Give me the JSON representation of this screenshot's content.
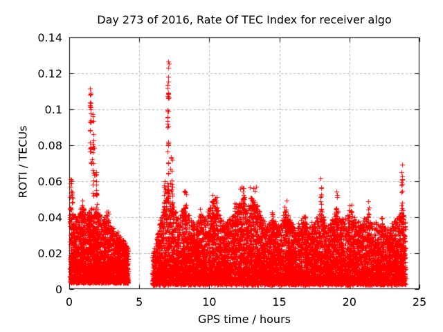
{
  "chart_data": {
    "type": "scatter",
    "title": "Day 273 of 2016, Rate Of TEC Index for receiver algo",
    "xlabel": "GPS time / hours",
    "ylabel": "ROTI / TECUs",
    "xlim": [
      0,
      25
    ],
    "ylim": [
      0,
      0.14
    ],
    "xticks": [
      {
        "v": 0,
        "label": "0"
      },
      {
        "v": 5,
        "label": "5"
      },
      {
        "v": 10,
        "label": "10"
      },
      {
        "v": 15,
        "label": "15"
      },
      {
        "v": 20,
        "label": "20"
      },
      {
        "v": 25,
        "label": "25"
      }
    ],
    "yticks": [
      {
        "v": 0,
        "label": "0"
      },
      {
        "v": 0.02,
        "label": "0.02"
      },
      {
        "v": 0.04,
        "label": "0.04"
      },
      {
        "v": 0.06,
        "label": "0.06"
      },
      {
        "v": 0.08,
        "label": "0.08"
      },
      {
        "v": 0.1,
        "label": "0.1"
      },
      {
        "v": 0.12,
        "label": "0.12"
      },
      {
        "v": 0.14,
        "label": "0.14"
      }
    ],
    "grid": true,
    "legend": "none",
    "marker": "plus",
    "marker_size_px": 7,
    "marker_color": "#ff0000",
    "grid_color": "#b4b4b4",
    "frame_color": "#000000",
    "background": "#ffffff",
    "data_gap_hours": [
      4.2,
      5.95
    ],
    "seed": 20160273,
    "gen": {
      "skew": 1.9,
      "column_step": 0.055,
      "column_prob": 0.35,
      "jitter": 0.0015
    },
    "band_segments": [
      {
        "t0": 0.05,
        "t1": 4.2,
        "n": 2700,
        "floor": 0.004
      },
      {
        "t0": 5.95,
        "t1": 24.0,
        "n": 9800,
        "floor": 0.003
      }
    ],
    "envelope": [
      [
        0.0,
        0.05
      ],
      [
        0.3,
        0.042
      ],
      [
        0.6,
        0.04
      ],
      [
        0.9,
        0.048
      ],
      [
        1.2,
        0.042
      ],
      [
        1.5,
        0.045
      ],
      [
        2.0,
        0.045
      ],
      [
        2.4,
        0.038
      ],
      [
        2.7,
        0.042
      ],
      [
        3.0,
        0.035
      ],
      [
        3.4,
        0.032
      ],
      [
        3.8,
        0.028
      ],
      [
        4.2,
        0.022
      ],
      [
        5.95,
        0.018
      ],
      [
        6.2,
        0.028
      ],
      [
        6.6,
        0.042
      ],
      [
        7.0,
        0.055
      ],
      [
        7.4,
        0.048
      ],
      [
        7.8,
        0.038
      ],
      [
        8.2,
        0.048
      ],
      [
        8.6,
        0.04
      ],
      [
        9.0,
        0.036
      ],
      [
        9.4,
        0.042
      ],
      [
        9.8,
        0.04
      ],
      [
        10.1,
        0.048
      ],
      [
        10.4,
        0.05
      ],
      [
        10.7,
        0.042
      ],
      [
        11.1,
        0.036
      ],
      [
        11.5,
        0.04
      ],
      [
        11.9,
        0.044
      ],
      [
        12.3,
        0.05
      ],
      [
        12.7,
        0.044
      ],
      [
        13.0,
        0.052
      ],
      [
        13.4,
        0.048
      ],
      [
        13.8,
        0.038
      ],
      [
        14.2,
        0.036
      ],
      [
        14.6,
        0.04
      ],
      [
        15.0,
        0.034
      ],
      [
        15.4,
        0.046
      ],
      [
        15.8,
        0.038
      ],
      [
        16.2,
        0.034
      ],
      [
        16.6,
        0.04
      ],
      [
        17.0,
        0.036
      ],
      [
        17.4,
        0.038
      ],
      [
        17.8,
        0.042
      ],
      [
        18.0,
        0.046
      ],
      [
        18.4,
        0.034
      ],
      [
        18.8,
        0.04
      ],
      [
        19.1,
        0.046
      ],
      [
        19.5,
        0.038
      ],
      [
        20.0,
        0.044
      ],
      [
        20.4,
        0.04
      ],
      [
        20.8,
        0.036
      ],
      [
        21.2,
        0.042
      ],
      [
        21.6,
        0.036
      ],
      [
        22.0,
        0.038
      ],
      [
        22.4,
        0.036
      ],
      [
        22.8,
        0.034
      ],
      [
        23.2,
        0.038
      ],
      [
        23.6,
        0.042
      ],
      [
        23.8,
        0.046
      ],
      [
        24.0,
        0.038
      ]
    ],
    "spike_clusters": [
      {
        "t": 0.15,
        "hw": 0.15,
        "y0": 0.035,
        "y1": 0.062,
        "n": 22
      },
      {
        "t": 0.95,
        "hw": 0.1,
        "y0": 0.035,
        "y1": 0.053,
        "n": 12
      },
      {
        "t": 1.52,
        "hw": 0.07,
        "y0": 0.068,
        "y1": 0.1135,
        "n": 26
      },
      {
        "t": 1.7,
        "hw": 0.1,
        "y0": 0.05,
        "y1": 0.1,
        "n": 22
      },
      {
        "t": 1.95,
        "hw": 0.1,
        "y0": 0.038,
        "y1": 0.066,
        "n": 14
      },
      {
        "t": 2.7,
        "hw": 0.12,
        "y0": 0.032,
        "y1": 0.044,
        "n": 10
      },
      {
        "t": 6.8,
        "hw": 0.08,
        "y0": 0.035,
        "y1": 0.06,
        "n": 12
      },
      {
        "t": 7.05,
        "hw": 0.06,
        "y0": 0.05,
        "y1": 0.129,
        "n": 42
      },
      {
        "t": 7.3,
        "hw": 0.1,
        "y0": 0.04,
        "y1": 0.075,
        "n": 16
      },
      {
        "t": 8.3,
        "hw": 0.15,
        "y0": 0.033,
        "y1": 0.055,
        "n": 16
      },
      {
        "t": 9.4,
        "hw": 0.1,
        "y0": 0.03,
        "y1": 0.047,
        "n": 10
      },
      {
        "t": 10.3,
        "hw": 0.3,
        "y0": 0.03,
        "y1": 0.053,
        "n": 30
      },
      {
        "t": 11.9,
        "hw": 0.15,
        "y0": 0.03,
        "y1": 0.048,
        "n": 14
      },
      {
        "t": 12.4,
        "hw": 0.22,
        "y0": 0.03,
        "y1": 0.057,
        "n": 26
      },
      {
        "t": 13.1,
        "hw": 0.28,
        "y0": 0.03,
        "y1": 0.057,
        "n": 26
      },
      {
        "t": 14.5,
        "hw": 0.15,
        "y0": 0.028,
        "y1": 0.044,
        "n": 12
      },
      {
        "t": 15.45,
        "hw": 0.08,
        "y0": 0.03,
        "y1": 0.052,
        "n": 13
      },
      {
        "t": 16.8,
        "hw": 0.12,
        "y0": 0.028,
        "y1": 0.043,
        "n": 10
      },
      {
        "t": 17.95,
        "hw": 0.08,
        "y0": 0.034,
        "y1": 0.063,
        "n": 16
      },
      {
        "t": 19.1,
        "hw": 0.08,
        "y0": 0.03,
        "y1": 0.055,
        "n": 13
      },
      {
        "t": 20.1,
        "hw": 0.25,
        "y0": 0.028,
        "y1": 0.048,
        "n": 18
      },
      {
        "t": 21.35,
        "hw": 0.08,
        "y0": 0.03,
        "y1": 0.05,
        "n": 12
      },
      {
        "t": 22.3,
        "hw": 0.12,
        "y0": 0.028,
        "y1": 0.042,
        "n": 10
      },
      {
        "t": 23.75,
        "hw": 0.05,
        "y0": 0.03,
        "y1": 0.0715,
        "n": 20
      }
    ]
  }
}
